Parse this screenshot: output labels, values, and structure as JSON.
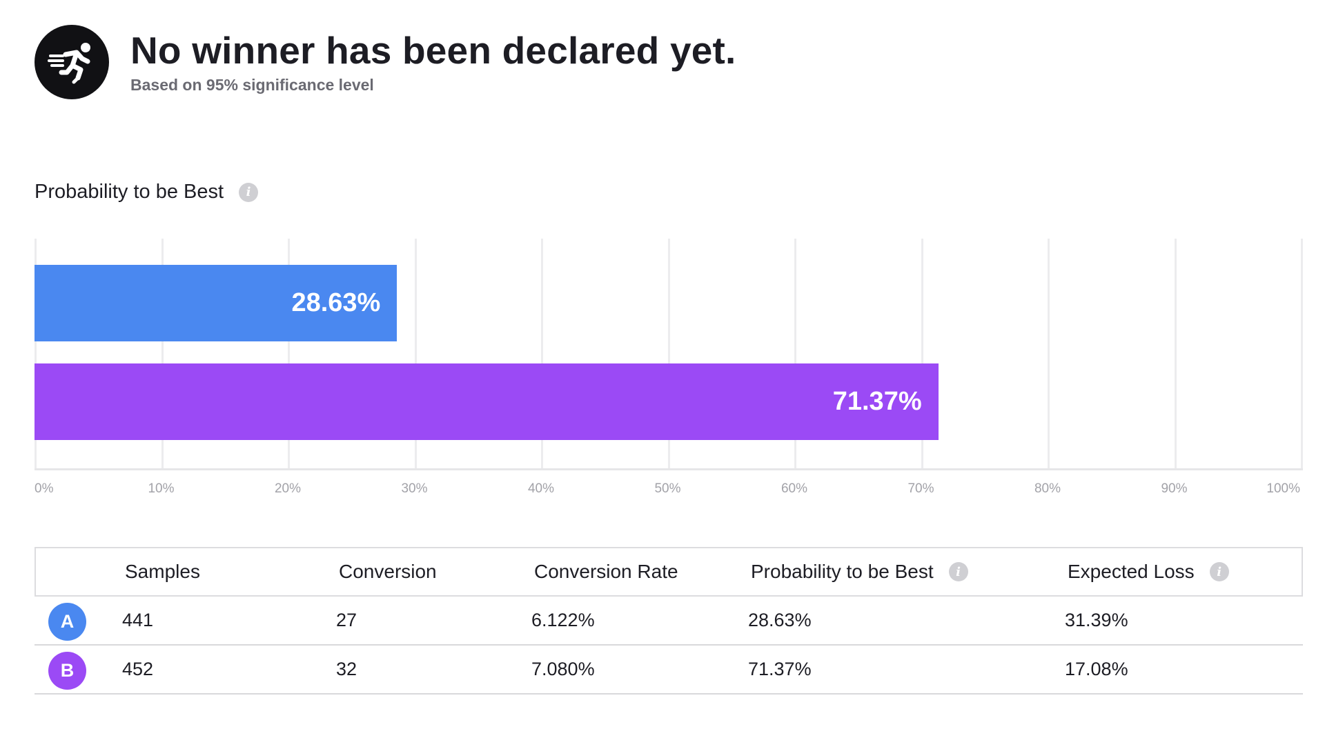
{
  "header": {
    "icon": "running-person-icon",
    "headline": "No winner has been declared yet.",
    "subline": "Based on 95% significance level"
  },
  "section": {
    "title": "Probability to be Best",
    "info_icon_glyph": "i"
  },
  "chart_data": {
    "type": "bar",
    "orientation": "horizontal",
    "categories": [
      "A",
      "B"
    ],
    "values": [
      28.63,
      71.37
    ],
    "data_labels": [
      "28.63%",
      "71.37%"
    ],
    "colors": [
      "#4a88f0",
      "#9b4af5"
    ],
    "xlim": [
      0,
      100
    ],
    "x_ticks": [
      "0%",
      "10%",
      "20%",
      "30%",
      "40%",
      "50%",
      "60%",
      "70%",
      "80%",
      "90%",
      "100%"
    ],
    "grid": true
  },
  "table": {
    "columns": [
      "Samples",
      "Conversion",
      "Conversion Rate",
      "Probability to be Best",
      "Expected Loss"
    ],
    "rows": [
      {
        "variant": "A",
        "color": "#4a88f0",
        "cells": [
          "441",
          "27",
          "6.122%",
          "28.63%",
          "31.39%"
        ]
      },
      {
        "variant": "B",
        "color": "#9b4af5",
        "cells": [
          "452",
          "32",
          "7.080%",
          "71.37%",
          "17.08%"
        ]
      }
    ]
  }
}
